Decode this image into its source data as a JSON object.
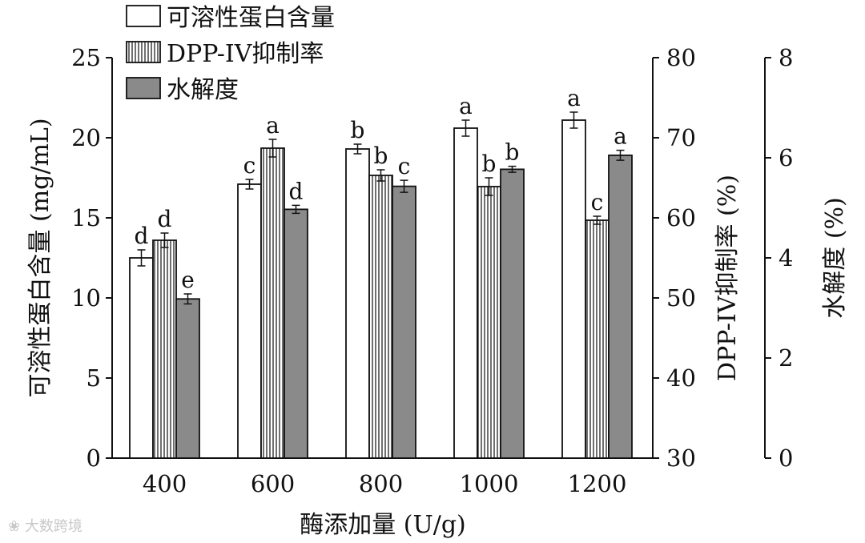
{
  "chart_data": {
    "type": "bar",
    "xlabel": "酶添加量 (U/g)",
    "categories": [
      "400",
      "600",
      "800",
      "1000",
      "1200"
    ],
    "axes": {
      "left": {
        "label": "可溶性蛋白含量 (mg/mL)",
        "min": 0,
        "max": 25,
        "ticks": [
          "0",
          "5",
          "10",
          "15",
          "20",
          "25"
        ]
      },
      "right1": {
        "label": "DPP-IV抑制率 (%)",
        "min": 30,
        "max": 80,
        "ticks": [
          "30",
          "40",
          "50",
          "60",
          "70",
          "80"
        ]
      },
      "right2": {
        "label": "水解度 (%)",
        "min": 0,
        "max": 8,
        "ticks": [
          "0",
          "2",
          "4",
          "6",
          "8"
        ]
      }
    },
    "series": [
      {
        "name": "可溶性蛋白含量",
        "axis": "left",
        "pattern": "white",
        "values": [
          12.5,
          17.1,
          19.3,
          20.6,
          21.1
        ],
        "errors": [
          0.5,
          0.3,
          0.3,
          0.5,
          0.5
        ],
        "letters": [
          "d",
          "c",
          "b",
          "a",
          "a"
        ]
      },
      {
        "name": "DPP-IV抑制率",
        "axis": "right1",
        "pattern": "striped",
        "values": [
          57.2,
          68.7,
          65.3,
          63.9,
          59.7
        ],
        "errors": [
          0.9,
          1.1,
          0.7,
          1.1,
          0.5
        ],
        "letters": [
          "d",
          "a",
          "b",
          "b",
          "c"
        ]
      },
      {
        "name": "水解度",
        "axis": "right2",
        "pattern": "gray",
        "values": [
          3.18,
          4.97,
          5.43,
          5.77,
          6.05
        ],
        "errors": [
          0.1,
          0.08,
          0.12,
          0.06,
          0.1
        ],
        "letters": [
          "e",
          "d",
          "c",
          "b",
          "a"
        ]
      }
    ],
    "colors": {
      "gray_fill": "#8a8a8a",
      "white_fill": "#ffffff",
      "stroke": "#111111"
    },
    "legend_position": "top-left"
  },
  "watermark": {
    "icon": "weibo-icon",
    "text": "大数跨境"
  }
}
